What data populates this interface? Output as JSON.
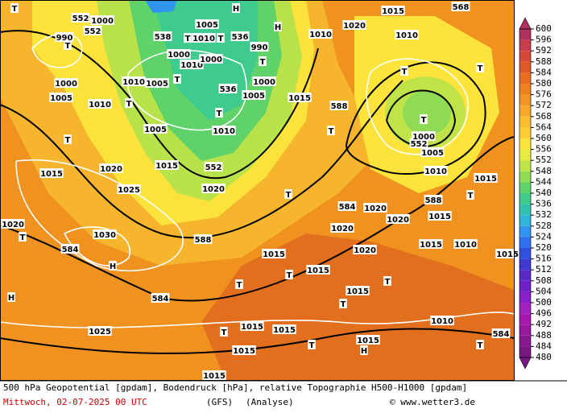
{
  "map": {
    "labels": [
      "552",
      "552",
      "990",
      "538",
      "536",
      "536",
      "552",
      "588",
      "584",
      "584",
      "584",
      "588",
      "588",
      "552",
      "584",
      "568",
      "1000",
      "1005",
      "1010",
      "1000",
      "1010",
      "1000",
      "990",
      "1000",
      "1005",
      "1010",
      "1005",
      "1010",
      "1005",
      "1010",
      "1015",
      "1020",
      "1025",
      "1020",
      "1030",
      "1015",
      "1020",
      "1025",
      "1000",
      "1005",
      "1010",
      "1020",
      "1015",
      "1000",
      "1005",
      "1010",
      "1015",
      "1020",
      "1020",
      "1015",
      "1015",
      "1010",
      "1015",
      "1020",
      "1015",
      "1020",
      "1015",
      "1015",
      "1015",
      "1015",
      "1015",
      "1010",
      "1015",
      "1015",
      "1010",
      "1015",
      "T",
      "T",
      "H",
      "H",
      "T",
      "T",
      "T",
      "T",
      "T",
      "T",
      "T",
      "T",
      "T",
      "H",
      "H",
      "T",
      "T",
      "T",
      "T",
      "T",
      "T",
      "T",
      "T",
      "T",
      "T",
      "H",
      "T",
      "T"
    ]
  },
  "colorbar": {
    "ticks": [
      600,
      596,
      592,
      588,
      584,
      580,
      576,
      572,
      568,
      564,
      560,
      556,
      552,
      548,
      544,
      540,
      536,
      532,
      528,
      524,
      520,
      516,
      512,
      508,
      504,
      500,
      496,
      492,
      488,
      484,
      480
    ],
    "colors": [
      "#b03060",
      "#c83c50",
      "#d84838",
      "#e05a28",
      "#e86e22",
      "#ee8020",
      "#f29424",
      "#f6a82a",
      "#fabc30",
      "#fcd034",
      "#fce43c",
      "#e8ec40",
      "#c0e448",
      "#90dc54",
      "#60d468",
      "#40cc88",
      "#30c4b0",
      "#30b4d8",
      "#3094f0",
      "#3070f0",
      "#3050e0",
      "#4038d0",
      "#5828c8",
      "#7020c8",
      "#8820c8",
      "#a020c0",
      "#a818b0",
      "#9818a0",
      "#881890",
      "#781880"
    ]
  },
  "footer": {
    "line1": "500 hPa Geopotential [gpdam], Bodendruck [hPa], relative Topographie H500-H1000 [gpdam]",
    "date": "Mittwoch, 02-07-2025  00 UTC",
    "model": "(GFS)",
    "run": "(Analyse)",
    "site": "© www.wetter3.de"
  }
}
